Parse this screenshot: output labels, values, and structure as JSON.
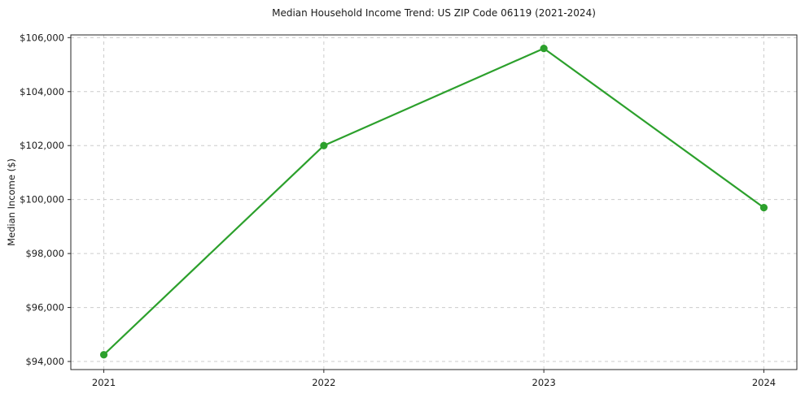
{
  "chart_data": {
    "type": "line",
    "title": "Median Household Income Trend: US ZIP Code 06119 (2021-2024)",
    "xlabel": "",
    "ylabel": "Median Income ($)",
    "categories": [
      "2021",
      "2022",
      "2023",
      "2024"
    ],
    "values": [
      94250,
      102000,
      105600,
      99700
    ],
    "ylim": [
      93700,
      106100
    ],
    "yticks": [
      94000,
      96000,
      98000,
      100000,
      102000,
      104000,
      106000
    ],
    "ytick_labels": [
      "$94,000",
      "$96,000",
      "$98,000",
      "$100,000",
      "$102,000",
      "$104,000",
      "$106,000"
    ],
    "grid": true,
    "grid_style": "dashed",
    "legend_position": "none",
    "colors": {
      "line": "#2ca02c",
      "marker": "#2ca02c",
      "grid": "#cccccc",
      "axis": "#262626",
      "text": "#1a1a1a",
      "background": "#ffffff"
    }
  }
}
